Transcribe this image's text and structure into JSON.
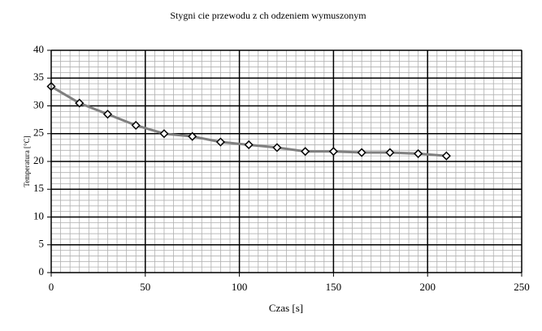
{
  "chart_data": {
    "type": "scatter",
    "title": "Stygni  cie przewodu z ch odzeniem wymuszonym",
    "x_label": "Czas [s]",
    "y_label": "Temperatura [°C]",
    "x": [
      0,
      15,
      30,
      45,
      60,
      75,
      90,
      105,
      120,
      135,
      150,
      165,
      180,
      195,
      210
    ],
    "series": [
      {
        "color": "#808080",
        "values": [
          33.5,
          30.5,
          28.5,
          26.5,
          25,
          24.5,
          23.5,
          23,
          22.5,
          21.8,
          21.8,
          21.6,
          21.6,
          21.4,
          21
        ]
      }
    ],
    "xlim": [
      0,
      250
    ],
    "xticks": [
      0,
      50,
      100,
      150,
      200,
      250
    ],
    "ylim": [
      0,
      40
    ],
    "yticks": [
      0,
      5,
      10,
      15,
      20,
      25,
      30,
      35,
      40
    ],
    "grid": true,
    "minor_grid": {
      "x": 5,
      "y": 1
    }
  }
}
